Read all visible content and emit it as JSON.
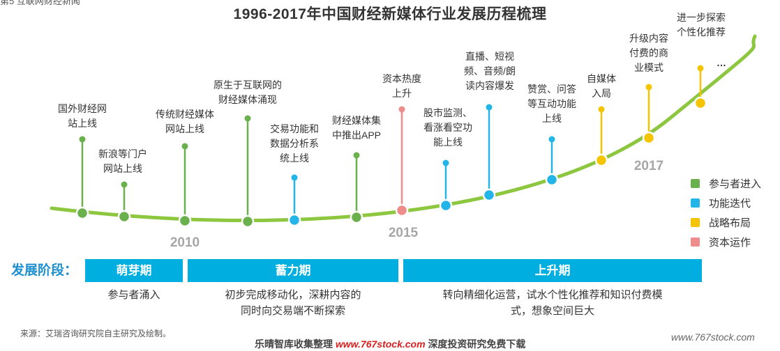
{
  "corner_text": "第5 互联网财经新闻",
  "title": "1996-2017年中国财经新媒体行业发展历程梳理",
  "colors": {
    "participant": "#6ab04c",
    "function": "#23b5e8",
    "strategy": "#f5c400",
    "capital": "#ee8c8c",
    "curve": "#8dc63f",
    "stage_bar": "#00aee0"
  },
  "legend": [
    {
      "key": "participant",
      "label": "参与者进入"
    },
    {
      "key": "function",
      "label": "功能迭代"
    },
    {
      "key": "strategy",
      "label": "战略布局"
    },
    {
      "key": "capital",
      "label": "资本运作"
    }
  ],
  "years": [
    "2010",
    "2015",
    "2017"
  ],
  "events": [
    {
      "type": "participant",
      "lines": [
        "国外财经网",
        "站上线"
      ]
    },
    {
      "type": "participant",
      "lines": [
        "新浪等门户",
        "网站上线"
      ]
    },
    {
      "type": "participant",
      "lines": [
        "传统财经媒体",
        "网站上线"
      ]
    },
    {
      "type": "participant",
      "lines": [
        "原生于互联网的",
        "财经媒体涌现"
      ]
    },
    {
      "type": "function",
      "lines": [
        "交易功能和",
        "数据分析系",
        "统上线"
      ]
    },
    {
      "type": "participant",
      "lines": [
        "财经媒体集",
        "中推出APP"
      ]
    },
    {
      "type": "capital",
      "lines": [
        "资本热度",
        "上升"
      ]
    },
    {
      "type": "function",
      "lines": [
        "股市监测、",
        "看涨看空功",
        "能上线"
      ]
    },
    {
      "type": "function",
      "lines": [
        "直播、短视",
        "频、音频/朗",
        "读内容爆发"
      ]
    },
    {
      "type": "function",
      "lines": [
        "赞赏、问答",
        "等互动功能",
        "上线"
      ]
    },
    {
      "type": "strategy",
      "lines": [
        "自媒体",
        "入局"
      ]
    },
    {
      "type": "strategy",
      "lines": [
        "升级内容",
        "付费的商",
        "业模式"
      ]
    },
    {
      "type": "strategy",
      "lines": [
        "进一步探索",
        "个性化推荐"
      ]
    }
  ],
  "ellipsis": "…",
  "stages": {
    "heading": "发展阶段：",
    "items": [
      {
        "name": "萌芽期",
        "desc": [
          "参与者涌入"
        ]
      },
      {
        "name": "蓄力期",
        "desc": [
          "初步完成移动化，深耕内容的",
          "同时向交易端不断探索"
        ]
      },
      {
        "name": "上升期",
        "desc": [
          "转向精细化运营，试水个性化推荐和知识付费模",
          "式，想象空间巨大"
        ]
      }
    ]
  },
  "source": "来源：艾瑞咨询研究院自主研究及绘制。",
  "watermark": {
    "center_prefix": "乐晴智库收集整理",
    "center_url": "www.767stock.com",
    "center_suffix": "深度投资研究免费下载",
    "right": "www.767stock.com"
  }
}
